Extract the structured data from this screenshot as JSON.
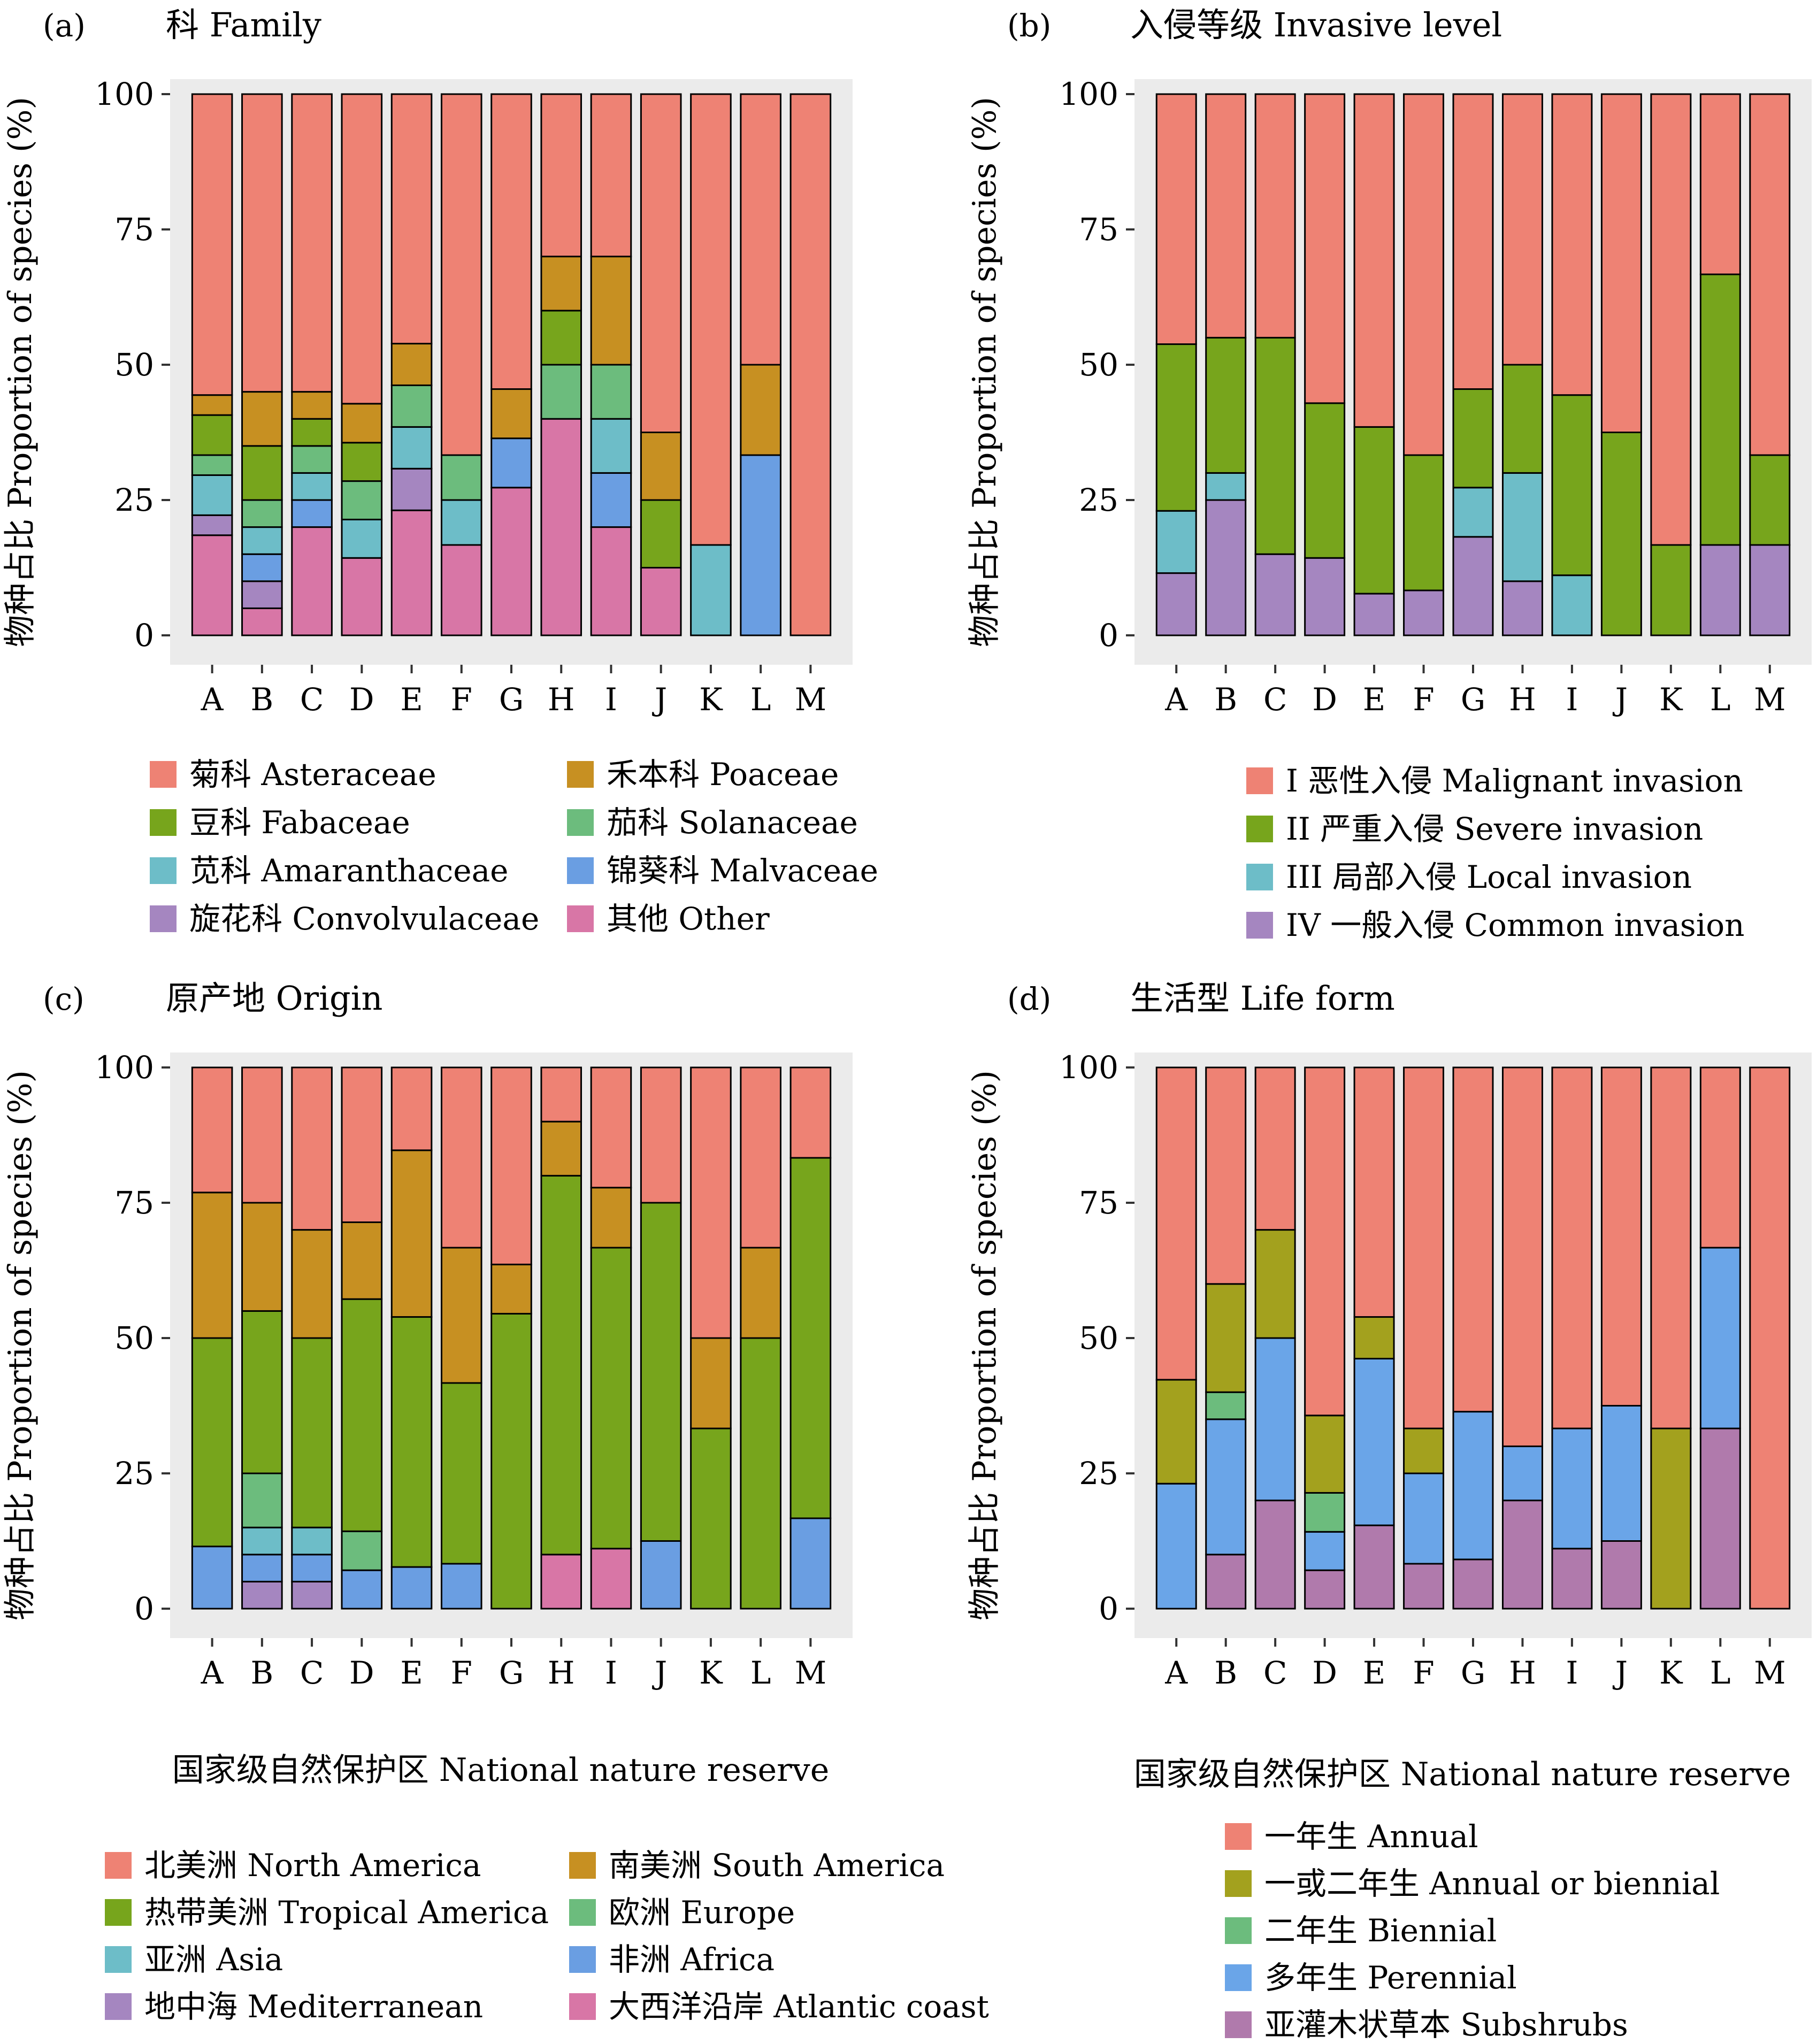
{
  "colors": {
    "panel_bg": "#ebebeb",
    "bar_stroke": "#000000",
    "asteraceae": "#ee8274",
    "poaceae": "#c79022",
    "fabaceae": "#77a51c",
    "solanaceae": "#6cbc7d",
    "amaranthaceae": "#6dbdc8",
    "malvaceae": "#6a9ee2",
    "convolvulaceae": "#a586c0",
    "other": "#d876a6",
    "malignant": "#ee8274",
    "severe": "#77a51c",
    "local": "#6dbdc8",
    "common": "#a586c0",
    "north_america": "#ee8274",
    "south_america": "#c79022",
    "tropical_america": "#77a51c",
    "europe": "#6cbc7d",
    "asia": "#6dbdc8",
    "africa": "#6a9ee2",
    "mediterranean": "#a586c0",
    "atlantic_coast": "#d876a6",
    "annual": "#ee8274",
    "annual_or_biennial": "#a3a11e",
    "biennial": "#6cbc7d",
    "perennial": "#6aa5e8",
    "subshrubs": "#b07aac"
  },
  "chart_data": [
    {
      "panel": "(a)",
      "type": "bar",
      "stacked": true,
      "title": "科 Family",
      "xlabel": "",
      "ylabel": "物种占比 Proportion of species (%)",
      "ylim": [
        0,
        100
      ],
      "yticks": [
        "0",
        "25",
        "50",
        "75",
        "100"
      ],
      "categories": [
        "A",
        "B",
        "C",
        "D",
        "E",
        "F",
        "G",
        "H",
        "I",
        "J",
        "K",
        "L",
        "M"
      ],
      "series": [
        {
          "name": "其他 Other",
          "color": "#d876a6",
          "values": [
            18.5,
            5,
            20,
            14.3,
            23.1,
            16.7,
            27.3,
            40,
            20,
            12.5,
            0,
            0,
            0
          ]
        },
        {
          "name": "旋花科 Convolvulaceae",
          "color": "#a586c0",
          "values": [
            3.7,
            5,
            0,
            0,
            7.7,
            0,
            0,
            0,
            0,
            0,
            0,
            0,
            0
          ]
        },
        {
          "name": "锦葵科 Malvaceae",
          "color": "#6a9ee2",
          "values": [
            0,
            5,
            5,
            0,
            0,
            0,
            9.1,
            0,
            10,
            0,
            0,
            33.3,
            0
          ]
        },
        {
          "name": "苋科 Amaranthaceae",
          "color": "#6dbdc8",
          "values": [
            7.4,
            5,
            5,
            7.1,
            7.7,
            8.3,
            0,
            0,
            10,
            0,
            16.7,
            0,
            0
          ]
        },
        {
          "name": "茄科 Solanaceae",
          "color": "#6cbc7d",
          "values": [
            3.7,
            5,
            5,
            7.1,
            7.7,
            8.3,
            0,
            10,
            10,
            0,
            0,
            0,
            0
          ]
        },
        {
          "name": "豆科 Fabaceae",
          "color": "#77a51c",
          "values": [
            7.4,
            10,
            5,
            7.1,
            0,
            0,
            0,
            10,
            0,
            12.5,
            0,
            0,
            0
          ]
        },
        {
          "name": "禾本科 Poaceae",
          "color": "#c79022",
          "values": [
            3.7,
            10,
            5,
            7.2,
            7.7,
            0,
            9.1,
            10,
            20,
            12.5,
            0,
            16.7,
            0
          ]
        },
        {
          "name": "菊科 Asteraceae",
          "color": "#ee8274",
          "values": [
            55.6,
            55,
            55,
            57.2,
            46.1,
            66.7,
            54.5,
            30,
            30,
            62.5,
            83.3,
            50,
            100
          ]
        }
      ],
      "legend": [
        {
          "label": "菊科 Asteraceae",
          "color": "#ee8274"
        },
        {
          "label": "禾本科 Poaceae",
          "color": "#c79022"
        },
        {
          "label": "豆科 Fabaceae",
          "color": "#77a51c"
        },
        {
          "label": "茄科 Solanaceae",
          "color": "#6cbc7d"
        },
        {
          "label": "苋科 Amaranthaceae",
          "color": "#6dbdc8"
        },
        {
          "label": "锦葵科 Malvaceae",
          "color": "#6a9ee2"
        },
        {
          "label": "旋花科 Convolvulaceae",
          "color": "#a586c0"
        },
        {
          "label": "其他 Other",
          "color": "#d876a6"
        }
      ],
      "legend_columns": 2,
      "grid": false
    },
    {
      "panel": "(b)",
      "type": "bar",
      "stacked": true,
      "title": "入侵等级 Invasive level",
      "xlabel": "",
      "ylabel": "物种占比 Proportion of species (%)",
      "ylim": [
        0,
        100
      ],
      "yticks": [
        "0",
        "25",
        "50",
        "75",
        "100"
      ],
      "categories": [
        "A",
        "B",
        "C",
        "D",
        "E",
        "F",
        "G",
        "H",
        "I",
        "J",
        "K",
        "L",
        "M"
      ],
      "series": [
        {
          "name": "IV 一般入侵 Common invasion",
          "color": "#a586c0",
          "values": [
            11.5,
            25,
            15,
            14.3,
            7.7,
            8.3,
            18.2,
            10,
            0,
            0,
            0,
            16.7,
            16.7
          ]
        },
        {
          "name": "III 局部入侵 Local invasion",
          "color": "#6dbdc8",
          "values": [
            11.5,
            5,
            0,
            0,
            0,
            0,
            9.1,
            20,
            11.1,
            0,
            0,
            0,
            0
          ]
        },
        {
          "name": "II 严重入侵 Severe invasion",
          "color": "#77a51c",
          "values": [
            30.8,
            25,
            40,
            28.6,
            30.8,
            25,
            18.2,
            20,
            33.3,
            37.5,
            16.7,
            50,
            16.6
          ]
        },
        {
          "name": "I 恶性入侵 Malignant invasion",
          "color": "#ee8274",
          "values": [
            46.2,
            45,
            45,
            57.1,
            61.5,
            66.7,
            54.5,
            50,
            55.6,
            62.5,
            83.3,
            33.3,
            66.7
          ]
        }
      ],
      "legend": [
        {
          "label": "I 恶性入侵 Malignant invasion",
          "color": "#ee8274"
        },
        {
          "label": "II 严重入侵 Severe invasion",
          "color": "#77a51c"
        },
        {
          "label": "III 局部入侵 Local invasion",
          "color": "#6dbdc8"
        },
        {
          "label": "IV 一般入侵 Common invasion",
          "color": "#a586c0"
        }
      ],
      "legend_columns": 1,
      "grid": false
    },
    {
      "panel": "(c)",
      "type": "bar",
      "stacked": true,
      "title": "原产地 Origin",
      "xlabel": "国家级自然保护区 National nature reserve",
      "ylabel": "物种占比 Proportion of species (%)",
      "ylim": [
        0,
        100
      ],
      "yticks": [
        "0",
        "25",
        "50",
        "75",
        "100"
      ],
      "categories": [
        "A",
        "B",
        "C",
        "D",
        "E",
        "F",
        "G",
        "H",
        "I",
        "J",
        "K",
        "L",
        "M"
      ],
      "series": [
        {
          "name": "大西洋沿岸 Atlantic coast",
          "color": "#d876a6",
          "values": [
            0,
            0,
            0,
            0,
            0,
            0,
            0,
            10,
            11.1,
            0,
            0,
            0,
            0
          ]
        },
        {
          "name": "地中海 Mediterranean",
          "color": "#a586c0",
          "values": [
            0,
            5,
            5,
            0,
            0,
            0,
            0,
            0,
            0,
            0,
            0,
            0,
            0
          ]
        },
        {
          "name": "非洲 Africa",
          "color": "#6a9ee2",
          "values": [
            11.5,
            5,
            5,
            7.1,
            7.7,
            8.3,
            0,
            0,
            0,
            12.5,
            0,
            0,
            16.7
          ]
        },
        {
          "name": "亚洲 Asia",
          "color": "#6dbdc8",
          "values": [
            0,
            5,
            5,
            0,
            0,
            0,
            0,
            0,
            0,
            0,
            0,
            0,
            0
          ]
        },
        {
          "name": "欧洲 Europe",
          "color": "#6cbc7d",
          "values": [
            0,
            10,
            0,
            7.2,
            0,
            0,
            0,
            0,
            0,
            0,
            0,
            0,
            0
          ]
        },
        {
          "name": "热带美洲 Tropical America",
          "color": "#77a51c",
          "values": [
            38.5,
            30,
            35,
            42.9,
            46.2,
            33.4,
            54.5,
            70,
            55.6,
            62.5,
            33.3,
            50,
            66.6
          ]
        },
        {
          "name": "南美洲 South America",
          "color": "#c79022",
          "values": [
            26.9,
            20,
            20,
            14.2,
            30.8,
            25,
            9.1,
            10,
            11.1,
            0,
            16.7,
            16.7,
            0
          ]
        },
        {
          "name": "北美洲 North America",
          "color": "#ee8274",
          "values": [
            23.1,
            25,
            30,
            28.6,
            15.3,
            33.3,
            36.4,
            10,
            22.2,
            25,
            50,
            33.3,
            16.7
          ]
        }
      ],
      "legend": [
        {
          "label": "北美洲 North America",
          "color": "#ee8274"
        },
        {
          "label": "南美洲 South America",
          "color": "#c79022"
        },
        {
          "label": "热带美洲 Tropical America",
          "color": "#77a51c"
        },
        {
          "label": "欧洲 Europe",
          "color": "#6cbc7d"
        },
        {
          "label": "亚洲 Asia",
          "color": "#6dbdc8"
        },
        {
          "label": "非洲 Africa",
          "color": "#6a9ee2"
        },
        {
          "label": "地中海 Mediterranean",
          "color": "#a586c0"
        },
        {
          "label": "大西洋沿岸 Atlantic coast",
          "color": "#d876a6"
        }
      ],
      "legend_columns": 2,
      "grid": false
    },
    {
      "panel": "(d)",
      "type": "bar",
      "stacked": true,
      "title": "生活型 Life form",
      "xlabel": "国家级自然保护区 National nature reserve",
      "ylabel": "物种占比 Proportion of species (%)",
      "ylim": [
        0,
        100
      ],
      "yticks": [
        "0",
        "25",
        "50",
        "75",
        "100"
      ],
      "categories": [
        "A",
        "B",
        "C",
        "D",
        "E",
        "F",
        "G",
        "H",
        "I",
        "J",
        "K",
        "L",
        "M"
      ],
      "series": [
        {
          "name": "亚灌木状草本 Subshrubs",
          "color": "#b07aac",
          "values": [
            0,
            10,
            20,
            7.1,
            15.4,
            8.3,
            9.1,
            20,
            11.1,
            12.5,
            0,
            33.3,
            0
          ]
        },
        {
          "name": "多年生 Perennial",
          "color": "#6aa5e8",
          "values": [
            23.1,
            25,
            30,
            7.1,
            30.8,
            16.7,
            27.3,
            10,
            22.2,
            25,
            0,
            33.4,
            0
          ]
        },
        {
          "name": "二年生 Biennial",
          "color": "#6cbc7d",
          "values": [
            0,
            5,
            0,
            7.2,
            0,
            0,
            0,
            0,
            0,
            0,
            0,
            0,
            0
          ]
        },
        {
          "name": "一或二年生 Annual or biennial",
          "color": "#a3a11e",
          "values": [
            19.2,
            20,
            20,
            14.3,
            7.7,
            8.3,
            0,
            0,
            0,
            0,
            33.3,
            0,
            0
          ]
        },
        {
          "name": "一年生 Annual",
          "color": "#ee8274",
          "values": [
            57.7,
            40,
            30,
            64.3,
            46.1,
            66.7,
            63.6,
            70,
            66.7,
            62.5,
            66.7,
            33.3,
            100
          ]
        }
      ],
      "legend": [
        {
          "label": "一年生 Annual",
          "color": "#ee8274"
        },
        {
          "label": "一或二年生 Annual or biennial",
          "color": "#a3a11e"
        },
        {
          "label": "二年生 Biennial",
          "color": "#6cbc7d"
        },
        {
          "label": "多年生 Perennial",
          "color": "#6aa5e8"
        },
        {
          "label": "亚灌木状草本 Subshrubs",
          "color": "#b07aac"
        }
      ],
      "legend_columns": 1,
      "grid": false
    }
  ]
}
